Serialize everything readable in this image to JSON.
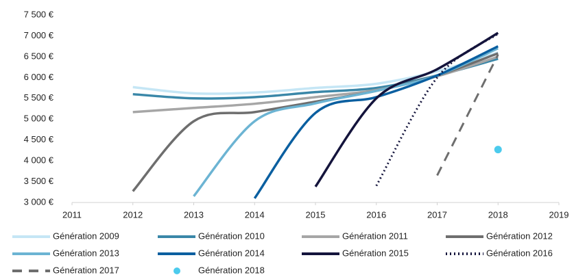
{
  "chart_data": {
    "type": "line",
    "x": [
      2012,
      2013,
      2014,
      2015,
      2016,
      2017,
      2018
    ],
    "xlim": [
      2011,
      2019
    ],
    "xticks": [
      2011,
      2012,
      2013,
      2014,
      2015,
      2016,
      2017,
      2018,
      2019
    ],
    "ylim": [
      3000,
      7500
    ],
    "yticks": [
      {
        "value": 3000,
        "label": "3 000 €"
      },
      {
        "value": 3500,
        "label": "3 500 €"
      },
      {
        "value": 4000,
        "label": "4 000 €"
      },
      {
        "value": 4500,
        "label": "4 500 €"
      },
      {
        "value": 5000,
        "label": "5 000 €"
      },
      {
        "value": 5500,
        "label": "5 500 €"
      },
      {
        "value": 6000,
        "label": "6 000 €"
      },
      {
        "value": 6500,
        "label": "6 500 €"
      },
      {
        "value": 7000,
        "label": "7 000 €"
      },
      {
        "value": 7500,
        "label": "7 500 €"
      }
    ],
    "legend": "bottom",
    "series": [
      {
        "name": "Génération 2009",
        "color": "#c5e6f5",
        "style": "solid",
        "values": [
          5770,
          5620,
          5640,
          5750,
          5850,
          6150,
          6600
        ]
      },
      {
        "name": "Génération 2010",
        "color": "#3a87a8",
        "style": "solid",
        "values": [
          5600,
          5500,
          5530,
          5650,
          5750,
          6050,
          6450
        ]
      },
      {
        "name": "Génération 2011",
        "color": "#a6a6a6",
        "style": "solid",
        "values": [
          5170,
          5270,
          5370,
          5530,
          5700,
          6030,
          6500
        ]
      },
      {
        "name": "Génération 2012",
        "color": "#6e6e6e",
        "style": "solid",
        "values": [
          3270,
          4950,
          5170,
          5420,
          5680,
          6050,
          6580
        ]
      },
      {
        "name": "Génération 2013",
        "color": "#6cb4d3",
        "style": "solid",
        "values": [
          null,
          3150,
          4950,
          5380,
          5680,
          6050,
          6700
        ]
      },
      {
        "name": "Génération 2014",
        "color": "#0a5fa0",
        "style": "solid",
        "values": [
          null,
          null,
          3100,
          5150,
          5530,
          6050,
          6750
        ]
      },
      {
        "name": "Génération 2015",
        "color": "#14143c",
        "style": "solid",
        "values": [
          null,
          null,
          null,
          3380,
          5500,
          6200,
          7070
        ]
      },
      {
        "name": "Génération 2016",
        "color": "#14143c",
        "style": "dotted",
        "values": [
          null,
          null,
          null,
          null,
          3400,
          6000,
          7050
        ]
      },
      {
        "name": "Génération 2017",
        "color": "#6e6e6e",
        "style": "dashed",
        "values": [
          null,
          null,
          null,
          null,
          null,
          3650,
          6550
        ]
      },
      {
        "name": "Génération 2018",
        "color": "#4ccbed",
        "style": "marker",
        "values": [
          null,
          null,
          null,
          null,
          null,
          null,
          4270
        ]
      }
    ]
  }
}
